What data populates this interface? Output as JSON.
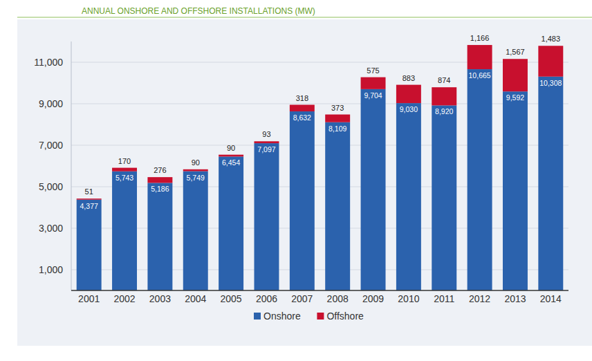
{
  "chart_data": {
    "type": "bar",
    "title": "ANNUAL ONSHORE AND OFFSHORE INSTALLATIONS (MW)",
    "categories": [
      "2001",
      "2002",
      "2003",
      "2004",
      "2005",
      "2006",
      "2007",
      "2008",
      "2009",
      "2010",
      "2011",
      "2012",
      "2013",
      "2014"
    ],
    "series": [
      {
        "name": "Onshore",
        "color": "#2b62ad",
        "values": [
          4377,
          5743,
          5186,
          5749,
          6454,
          7097,
          8632,
          8109,
          9704,
          9030,
          8920,
          10665,
          9592,
          10308
        ],
        "value_labels": [
          "4,377",
          "5,743",
          "5,186",
          "5,749",
          "6,454",
          "7,097",
          "8,632",
          "8,109",
          "9,704",
          "9,030",
          "8,920",
          "10,665",
          "9,592",
          "10,308"
        ]
      },
      {
        "name": "Offshore",
        "color": "#c8102e",
        "values": [
          51,
          170,
          276,
          90,
          90,
          93,
          318,
          373,
          575,
          883,
          874,
          1166,
          1567,
          1483
        ],
        "value_labels": [
          "51",
          "170",
          "276",
          "90",
          "90",
          "93",
          "318",
          "373",
          "575",
          "883",
          "874",
          "1,166",
          "1,567",
          "1,483"
        ]
      }
    ],
    "ylim": [
      0,
      12000
    ],
    "yticks": [
      {
        "value": 1000,
        "label": "1,000"
      },
      {
        "value": 3000,
        "label": "3,000"
      },
      {
        "value": 5000,
        "label": "5,000"
      },
      {
        "value": 7000,
        "label": "7,000"
      },
      {
        "value": 9000,
        "label": "9,000"
      },
      {
        "value": 11000,
        "label": "11,000"
      }
    ],
    "grid": true,
    "stacked": true,
    "data_labels": true,
    "legend": "bottom"
  }
}
